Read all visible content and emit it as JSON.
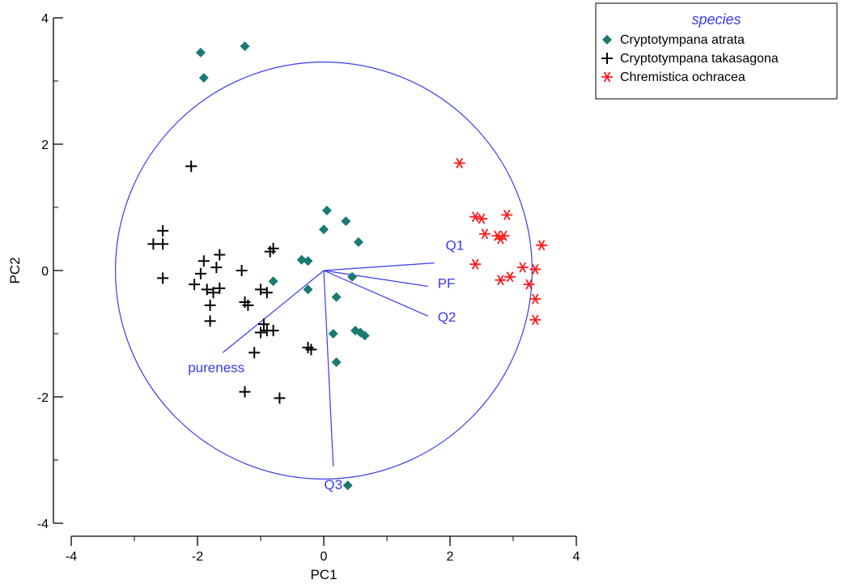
{
  "chart_data": {
    "type": "scatter",
    "title": "",
    "xlabel": "PC1",
    "ylabel": "PC2",
    "xlim": [
      -4,
      4
    ],
    "ylim": [
      -4,
      4
    ],
    "x_ticks": [
      "-4",
      "-2",
      "0",
      "2",
      "4"
    ],
    "y_ticks": [
      "-4",
      "-2",
      "0",
      "2",
      "4"
    ],
    "grid": false,
    "legend": {
      "title": "species",
      "placement": "top-right",
      "entries": [
        "Cryptotympana atrata",
        "Cryptotympana takasagona",
        "Chremistica ochracea"
      ]
    },
    "circle": {
      "center": [
        0,
        0
      ],
      "radius": 3.3,
      "color": "#3a3af0"
    },
    "series": [
      {
        "name": "Cryptotympana atrata",
        "marker": "diamond",
        "color": "#1b7a73",
        "points": [
          [
            -1.95,
            3.45
          ],
          [
            -1.25,
            3.55
          ],
          [
            -1.9,
            3.05
          ],
          [
            0.05,
            0.95
          ],
          [
            0.35,
            0.78
          ],
          [
            0.0,
            0.65
          ],
          [
            0.55,
            0.45
          ],
          [
            -0.35,
            0.17
          ],
          [
            -0.25,
            0.15
          ],
          [
            0.45,
            -0.1
          ],
          [
            -0.8,
            -0.17
          ],
          [
            -0.25,
            -0.3
          ],
          [
            0.2,
            -0.42
          ],
          [
            0.5,
            -0.95
          ],
          [
            0.15,
            -1.0
          ],
          [
            0.58,
            -0.98
          ],
          [
            0.65,
            -1.03
          ],
          [
            0.2,
            -1.45
          ],
          [
            0.38,
            -3.4
          ]
        ]
      },
      {
        "name": "Cryptotympana takasagona",
        "marker": "plus",
        "color": "#000000",
        "points": [
          [
            -2.1,
            1.65
          ],
          [
            -2.55,
            0.63
          ],
          [
            -2.7,
            0.42
          ],
          [
            -2.55,
            0.42
          ],
          [
            -2.55,
            -0.12
          ],
          [
            -1.65,
            0.25
          ],
          [
            -1.9,
            0.15
          ],
          [
            -1.7,
            0.05
          ],
          [
            -1.95,
            -0.05
          ],
          [
            -2.05,
            -0.22
          ],
          [
            -1.85,
            -0.3
          ],
          [
            -1.75,
            -0.35
          ],
          [
            -1.65,
            -0.28
          ],
          [
            -1.8,
            -0.55
          ],
          [
            -1.8,
            -0.8
          ],
          [
            -1.3,
            0.0
          ],
          [
            -1.25,
            -0.5
          ],
          [
            -1.2,
            -0.55
          ],
          [
            -0.8,
            0.35
          ],
          [
            -0.85,
            0.3
          ],
          [
            -1.0,
            -0.3
          ],
          [
            -0.9,
            -0.35
          ],
          [
            -0.95,
            -0.85
          ],
          [
            -0.9,
            -0.95
          ],
          [
            -0.8,
            -0.95
          ],
          [
            -1.0,
            -0.98
          ],
          [
            -1.1,
            -1.3
          ],
          [
            -0.25,
            -1.22
          ],
          [
            -0.2,
            -1.25
          ],
          [
            -1.25,
            -1.92
          ],
          [
            -0.7,
            -2.02
          ]
        ]
      },
      {
        "name": "Chremistica ochracea",
        "marker": "asterisk",
        "color": "#ff1a1a",
        "points": [
          [
            2.15,
            1.7
          ],
          [
            2.4,
            0.85
          ],
          [
            2.5,
            0.82
          ],
          [
            2.9,
            0.88
          ],
          [
            2.55,
            0.58
          ],
          [
            2.75,
            0.55
          ],
          [
            2.85,
            0.55
          ],
          [
            2.8,
            0.5
          ],
          [
            3.45,
            0.4
          ],
          [
            2.4,
            0.1
          ],
          [
            3.15,
            0.05
          ],
          [
            3.35,
            0.02
          ],
          [
            2.8,
            -0.15
          ],
          [
            2.95,
            -0.1
          ],
          [
            3.25,
            -0.22
          ],
          [
            3.35,
            -0.45
          ],
          [
            3.35,
            -0.78
          ]
        ]
      }
    ],
    "vectors": [
      {
        "label": "Q1",
        "end": [
          1.75,
          0.12
        ]
      },
      {
        "label": "PF",
        "end": [
          1.65,
          -0.25
        ]
      },
      {
        "label": "Q2",
        "end": [
          1.65,
          -0.72
        ]
      },
      {
        "label": "pureness",
        "end": [
          -1.6,
          -1.3
        ]
      },
      {
        "label": "Q3",
        "end": [
          0.15,
          -3.1
        ]
      }
    ],
    "vector_color": "#3a3af0"
  }
}
